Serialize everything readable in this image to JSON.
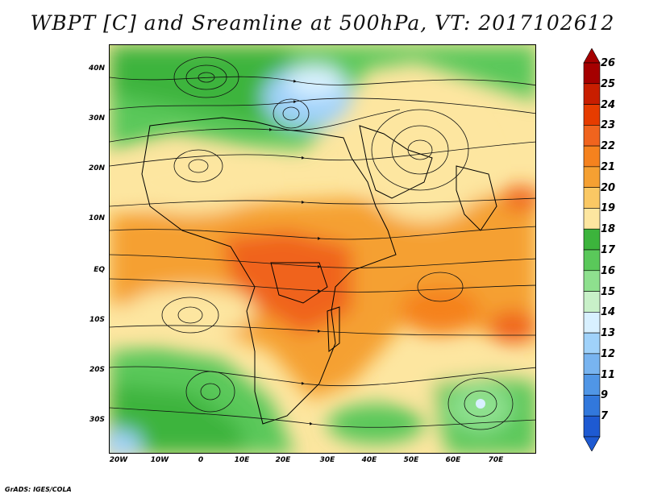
{
  "title": "WBPT [C] and Sreamline at 500hPa, VT: 2017102612",
  "credit": "GrADS: IGES/COLA",
  "y_ticks": [
    "40N",
    "30N",
    "20N",
    "10N",
    "EQ",
    "10S",
    "20S",
    "30S"
  ],
  "x_ticks": [
    "20W",
    "10W",
    "0",
    "10E",
    "20E",
    "30E",
    "40E",
    "50E",
    "60E",
    "70E"
  ],
  "colorbar": {
    "labels": [
      "26",
      "25",
      "24",
      "23",
      "22",
      "21",
      "20",
      "19",
      "18",
      "17",
      "16",
      "15",
      "14",
      "13",
      "12",
      "11",
      "9",
      "7"
    ],
    "colors": [
      "#a50000",
      "#c81e00",
      "#e63c00",
      "#f0641e",
      "#f5821e",
      "#f5a032",
      "#fac864",
      "#fde6a0",
      "#3cb43c",
      "#5ac85a",
      "#8ee08e",
      "#c8f0c8",
      "#d8f0ff",
      "#a0d2fa",
      "#78b4f0",
      "#5096e6",
      "#3278dc",
      "#1e5ad2"
    ],
    "top_arrow_color": "#a50000",
    "bottom_arrow_color": "#1e5ad2"
  },
  "colors": {
    "land_outline": "#000000",
    "streamline": "#111111",
    "background": "#ffffff"
  }
}
